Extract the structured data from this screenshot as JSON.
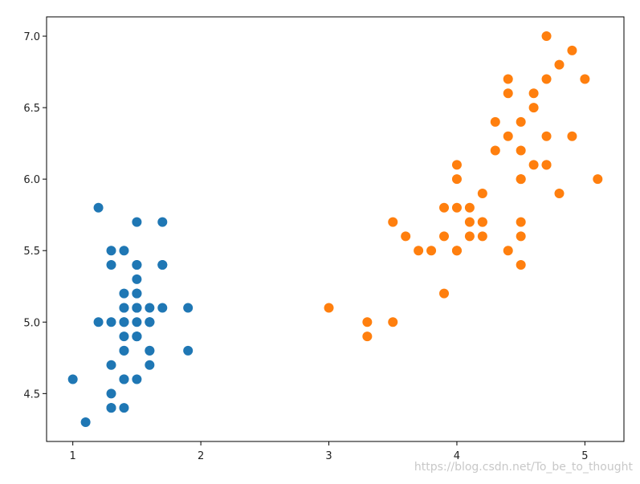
{
  "chart_data": {
    "type": "scatter",
    "xlim": [
      0.795,
      5.305
    ],
    "ylim": [
      4.165,
      7.135
    ],
    "xticks": [
      1,
      2,
      3,
      4,
      5
    ],
    "yticks": [
      4.5,
      {
        "value": 5,
        "label": "5.0"
      },
      5.5,
      {
        "value": 6,
        "label": "6.0"
      },
      6.5,
      {
        "value": 7,
        "label": "7.0"
      }
    ],
    "grid": false,
    "series": [
      {
        "color": "#1f77b4",
        "x": [
          1.4,
          1.4,
          1.3,
          1.5,
          1.4,
          1.7,
          1.4,
          1.5,
          1.4,
          1.5,
          1.5,
          1.6,
          1.4,
          1.1,
          1.2,
          1.5,
          1.3,
          1.4,
          1.7,
          1.5,
          1.7,
          1.5,
          1.0,
          1.7,
          1.9,
          1.6,
          1.6,
          1.5,
          1.4,
          1.6,
          1.6,
          1.5,
          1.5,
          1.4,
          1.5,
          1.2,
          1.3,
          1.5,
          1.3,
          1.5,
          1.3,
          1.3,
          1.3,
          1.6,
          1.9,
          1.4,
          1.6,
          1.4,
          1.5,
          1.4
        ],
        "values": [
          5.1,
          4.9,
          4.7,
          4.6,
          5.0,
          5.4,
          4.6,
          5.0,
          4.4,
          4.9,
          5.4,
          4.8,
          4.8,
          4.3,
          5.8,
          5.7,
          5.4,
          5.1,
          5.7,
          5.1,
          5.4,
          5.1,
          4.6,
          5.1,
          4.8,
          5.0,
          5.0,
          5.2,
          5.2,
          4.7,
          4.8,
          5.4,
          5.2,
          5.5,
          4.9,
          5.0,
          5.5,
          4.9,
          4.4,
          5.1,
          5.0,
          4.5,
          4.4,
          5.0,
          5.1,
          4.8,
          5.1,
          4.6,
          5.3,
          5.0
        ]
      },
      {
        "color": "#ff7f0e",
        "x": [
          4.7,
          4.5,
          4.9,
          4.0,
          4.6,
          4.5,
          4.7,
          3.3,
          4.6,
          3.9,
          3.5,
          4.2,
          4.0,
          4.7,
          3.6,
          4.4,
          4.5,
          4.1,
          4.5,
          3.9,
          4.8,
          4.0,
          4.9,
          4.7,
          4.3,
          4.4,
          4.8,
          5.0,
          4.5,
          3.5,
          3.8,
          3.7,
          3.9,
          5.1,
          4.5,
          4.5,
          4.7,
          4.4,
          4.1,
          4.0,
          4.4,
          4.6,
          4.0,
          3.3,
          4.2,
          4.2,
          4.2,
          4.3,
          3.0,
          4.1
        ],
        "values": [
          7.0,
          6.4,
          6.9,
          5.5,
          6.5,
          5.7,
          6.3,
          4.9,
          6.6,
          5.2,
          5.0,
          5.9,
          6.0,
          6.1,
          5.6,
          6.7,
          5.6,
          5.8,
          6.2,
          5.6,
          5.9,
          6.1,
          6.3,
          6.1,
          6.4,
          6.6,
          6.8,
          6.7,
          6.0,
          5.7,
          5.5,
          5.5,
          5.8,
          6.0,
          5.4,
          6.0,
          6.7,
          6.3,
          5.6,
          5.5,
          5.5,
          6.1,
          5.8,
          5.0,
          5.6,
          5.7,
          5.7,
          6.2,
          5.1,
          5.7
        ]
      }
    ],
    "watermark": "https://blog.csdn.net/To_be_to_thought"
  }
}
